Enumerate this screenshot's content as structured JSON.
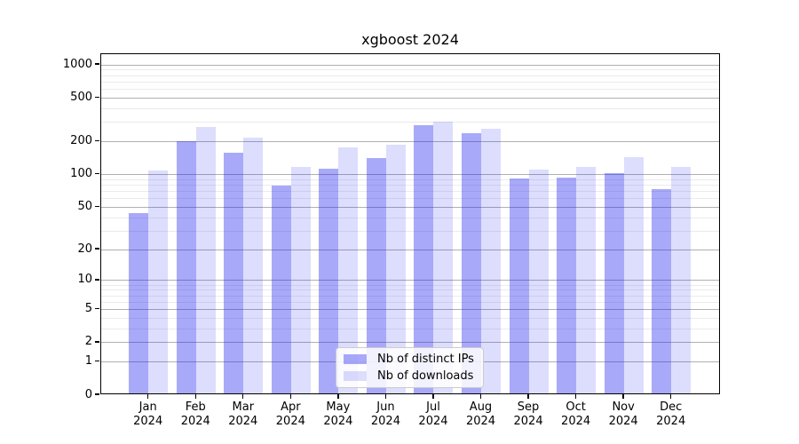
{
  "chart_data": {
    "type": "bar",
    "title": "xgboost 2024",
    "categories": [
      "Jan",
      "Feb",
      "Mar",
      "Apr",
      "May",
      "Jun",
      "Jul",
      "Aug",
      "Sep",
      "Oct",
      "Nov",
      "Dec"
    ],
    "x_tick_second_line": "2024",
    "series": [
      {
        "name": "Nb of distinct IPs",
        "values": [
          42,
          193,
          152,
          76,
          109,
          135,
          270,
          231,
          88,
          91,
          100,
          71
        ],
        "fill": "rgba(30,30,240,0.38)"
      },
      {
        "name": "Nb of downloads",
        "values": [
          104,
          263,
          210,
          114,
          169,
          182,
          294,
          252,
          106,
          112,
          140,
          114
        ],
        "fill": "rgba(30,30,240,0.15)"
      }
    ],
    "yscale": "log10(1+v)",
    "ylim": [
      0,
      1250
    ],
    "y_major_ticks": [
      0,
      1,
      2,
      5,
      10,
      20,
      50,
      100,
      200,
      500,
      1000
    ],
    "y_minor_gridlines": [
      3,
      4,
      6,
      7,
      8,
      9,
      30,
      40,
      60,
      70,
      80,
      90,
      300,
      400,
      600,
      700,
      800,
      900
    ],
    "grid": true,
    "legend_position": "lower center",
    "colors": {
      "bar_base": "#1e1ef0",
      "major_grid": "#b0b0b0",
      "minor_grid": "#ebebeb",
      "spine": "#000000",
      "background": "#ffffff",
      "text": "#000000"
    }
  }
}
